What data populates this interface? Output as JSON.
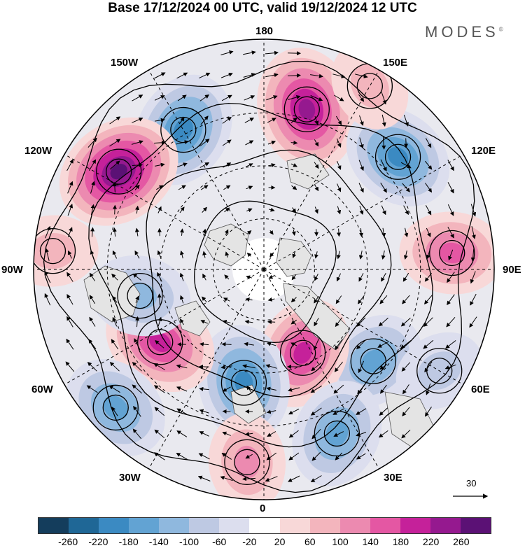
{
  "title": "Base 17/12/2024 00 UTC, valid 19/12/2024 12 UTC",
  "brand": "MODES",
  "brand_mark": "©",
  "longitude_labels": {
    "top": "180",
    "bottom": "0",
    "left": "90W",
    "right": "90E",
    "w150": "150W",
    "e150": "150E",
    "w120": "120W",
    "e120": "120E",
    "w60": "60W",
    "e60": "60E",
    "w30": "30W",
    "e30": "30E"
  },
  "reference_vector": "30",
  "colorbar": {
    "colors": [
      "#143d5c",
      "#1f6796",
      "#3b8ac2",
      "#62a3d3",
      "#8fb8de",
      "#bec9e3",
      "#dcdeee",
      "#ffffff",
      "#f8d8d8",
      "#f3b5bd",
      "#ec8ab0",
      "#e457a3",
      "#c5219a",
      "#95198f",
      "#5b1175"
    ],
    "ticks": [
      "-260",
      "-220",
      "-180",
      "-140",
      "-100",
      "-60",
      "-20",
      "20",
      "60",
      "100",
      "140",
      "180",
      "220",
      "260"
    ]
  },
  "anomaly_centers": [
    {
      "name": "a",
      "lon": 165,
      "r": 0.72,
      "value": 250
    },
    {
      "name": "b",
      "lon": -150,
      "r": 0.7,
      "value": -200
    },
    {
      "name": "c",
      "lon": -124,
      "r": 0.76,
      "value": 260
    },
    {
      "name": "d",
      "lon": 130,
      "r": 0.76,
      "value": -180
    },
    {
      "name": "e",
      "lon": 95,
      "r": 0.82,
      "value": 140
    },
    {
      "name": "f",
      "lon": 50,
      "r": 0.62,
      "value": -140
    },
    {
      "name": "g",
      "lon": 25,
      "r": 0.4,
      "value": 180
    },
    {
      "name": "h",
      "lon": -10,
      "r": 0.5,
      "value": -200
    },
    {
      "name": "i",
      "lon": 24,
      "r": 0.78,
      "value": -160
    },
    {
      "name": "j",
      "lon": -5,
      "r": 0.84,
      "value": 100
    },
    {
      "name": "k",
      "lon": -55,
      "r": 0.55,
      "value": 200
    },
    {
      "name": "l",
      "lon": -78,
      "r": 0.55,
      "value": -120
    },
    {
      "name": "m",
      "lon": -47,
      "r": 0.88,
      "value": -160
    },
    {
      "name": "n",
      "lon": 60,
      "r": 0.88,
      "value": -60
    },
    {
      "name": "o",
      "lon": -95,
      "r": 0.92,
      "value": 60
    },
    {
      "name": "p",
      "lon": 150,
      "r": 0.92,
      "value": 60
    }
  ]
}
